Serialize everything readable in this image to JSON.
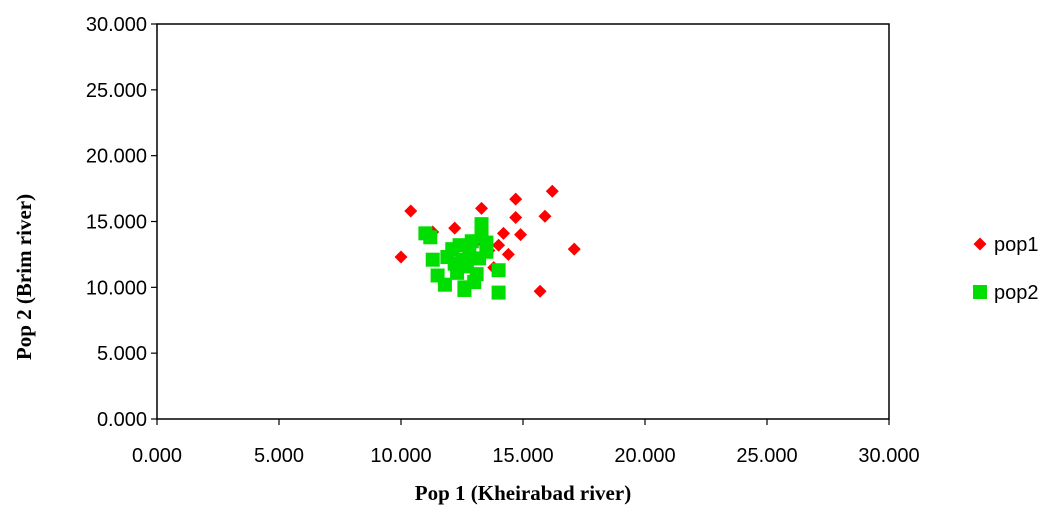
{
  "chart_data": {
    "type": "scatter",
    "title": "",
    "xlabel": "Pop 1 (Kheirabad river)",
    "ylabel": "Pop 2 (Brim river)",
    "xlim": [
      0,
      30
    ],
    "ylim": [
      0,
      30
    ],
    "xticks": [
      "0.000",
      "5.000",
      "10.000",
      "15.000",
      "20.000",
      "25.000",
      "30.000"
    ],
    "yticks": [
      "0.000",
      "5.000",
      "10.000",
      "15.000",
      "20.000",
      "25.000",
      "30.000"
    ],
    "grid": false,
    "legend_position": "right",
    "series": [
      {
        "name": "pop1",
        "marker": "diamond",
        "color": "#ff0000",
        "points": [
          [
            10.0,
            12.3
          ],
          [
            10.4,
            15.8
          ],
          [
            11.3,
            14.2
          ],
          [
            12.2,
            14.5
          ],
          [
            13.3,
            16.0
          ],
          [
            12.5,
            12.0
          ],
          [
            13.0,
            13.3
          ],
          [
            13.6,
            12.8
          ],
          [
            14.0,
            13.2
          ],
          [
            14.2,
            14.1
          ],
          [
            14.4,
            12.5
          ],
          [
            14.7,
            16.7
          ],
          [
            14.7,
            15.3
          ],
          [
            14.9,
            14.0
          ],
          [
            15.7,
            9.7
          ],
          [
            15.9,
            15.4
          ],
          [
            16.2,
            17.3
          ],
          [
            17.1,
            12.9
          ],
          [
            13.8,
            11.5
          ],
          [
            12.9,
            12.4
          ]
        ]
      },
      {
        "name": "pop2",
        "marker": "square",
        "color": "#00dd00",
        "points": [
          [
            11.0,
            14.1
          ],
          [
            11.2,
            13.8
          ],
          [
            11.3,
            12.1
          ],
          [
            11.5,
            10.9
          ],
          [
            11.8,
            10.2
          ],
          [
            11.9,
            12.3
          ],
          [
            12.1,
            12.9
          ],
          [
            12.3,
            11.1
          ],
          [
            12.4,
            13.2
          ],
          [
            12.6,
            10.0
          ],
          [
            12.6,
            9.8
          ],
          [
            12.7,
            11.6
          ],
          [
            12.8,
            12.6
          ],
          [
            12.9,
            13.5
          ],
          [
            13.0,
            10.4
          ],
          [
            13.1,
            11.0
          ],
          [
            13.2,
            12.2
          ],
          [
            13.3,
            13.9
          ],
          [
            13.3,
            14.8
          ],
          [
            13.5,
            12.7
          ],
          [
            13.5,
            13.4
          ],
          [
            14.0,
            11.3
          ],
          [
            14.0,
            9.6
          ],
          [
            12.5,
            12.1
          ],
          [
            12.2,
            11.8
          ]
        ]
      }
    ]
  }
}
